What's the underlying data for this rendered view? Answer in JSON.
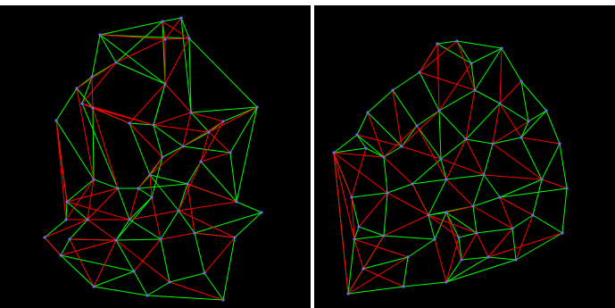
{
  "colors": {
    "background": "#000000",
    "separator": "#ffffff",
    "green_edge": "#00ff00",
    "red_edge": "#ff0000",
    "vertex": "#6a6aff"
  },
  "panels": [
    {
      "name": "left-mesh",
      "vertices": [
        [
          112,
          33
        ],
        [
          182,
          18
        ],
        [
          203,
          14
        ],
        [
          212,
          37
        ],
        [
          185,
          38
        ],
        [
          130,
          64
        ],
        [
          103,
          80
        ],
        [
          86,
          93
        ],
        [
          63,
          129
        ],
        [
          92,
          110
        ],
        [
          104,
          115
        ],
        [
          145,
          132
        ],
        [
          172,
          134
        ],
        [
          185,
          88
        ],
        [
          214,
          120
        ],
        [
          288,
          114
        ],
        [
          250,
          130
        ],
        [
          234,
          142
        ],
        [
          258,
          165
        ],
        [
          225,
          175
        ],
        [
          205,
          158
        ],
        [
          182,
          170
        ],
        [
          168,
          190
        ],
        [
          155,
          205
        ],
        [
          132,
          205
        ],
        [
          105,
          195
        ],
        [
          75,
          220
        ],
        [
          74,
          240
        ],
        [
          98,
          240
        ],
        [
          145,
          240
        ],
        [
          200,
          230
        ],
        [
          265,
          220
        ],
        [
          293,
          232
        ],
        [
          263,
          260
        ],
        [
          218,
          255
        ],
        [
          180,
          262
        ],
        [
          130,
          263
        ],
        [
          78,
          262
        ],
        [
          50,
          260
        ],
        [
          68,
          280
        ],
        [
          105,
          315
        ],
        [
          165,
          325
        ],
        [
          190,
          310
        ],
        [
          250,
          330
        ],
        [
          229,
          300
        ],
        [
          150,
          298
        ],
        [
          210,
          200
        ],
        [
          170,
          215
        ]
      ],
      "green_edges": [
        [
          0,
          1
        ],
        [
          1,
          2
        ],
        [
          2,
          3
        ],
        [
          0,
          3
        ],
        [
          0,
          5
        ],
        [
          5,
          6
        ],
        [
          6,
          7
        ],
        [
          7,
          8
        ],
        [
          2,
          14
        ],
        [
          3,
          14
        ],
        [
          14,
          15
        ],
        [
          15,
          16
        ],
        [
          15,
          18
        ],
        [
          15,
          31
        ],
        [
          31,
          32
        ],
        [
          32,
          33
        ],
        [
          33,
          43
        ],
        [
          43,
          41
        ],
        [
          41,
          40
        ],
        [
          40,
          39
        ],
        [
          39,
          38
        ],
        [
          38,
          27
        ],
        [
          27,
          26
        ],
        [
          26,
          8
        ],
        [
          0,
          6
        ],
        [
          1,
          5
        ],
        [
          3,
          15
        ],
        [
          6,
          9
        ],
        [
          9,
          10
        ],
        [
          10,
          11
        ],
        [
          11,
          12
        ],
        [
          12,
          13
        ],
        [
          13,
          4
        ],
        [
          4,
          1
        ],
        [
          5,
          13
        ],
        [
          7,
          10
        ],
        [
          12,
          21
        ],
        [
          21,
          22
        ],
        [
          22,
          23
        ],
        [
          23,
          24
        ],
        [
          24,
          25
        ],
        [
          25,
          26
        ],
        [
          22,
          46
        ],
        [
          46,
          30
        ],
        [
          30,
          34
        ],
        [
          34,
          33
        ],
        [
          21,
          47
        ],
        [
          47,
          29
        ],
        [
          29,
          36
        ],
        [
          36,
          45
        ],
        [
          45,
          40
        ],
        [
          45,
          41
        ],
        [
          42,
          44
        ],
        [
          44,
          34
        ],
        [
          42,
          35
        ],
        [
          35,
          36
        ],
        [
          35,
          30
        ],
        [
          22,
          30
        ],
        [
          23,
          47
        ],
        [
          29,
          35
        ],
        [
          20,
          21
        ],
        [
          20,
          18
        ],
        [
          19,
          46
        ],
        [
          19,
          31
        ],
        [
          18,
          31
        ],
        [
          16,
          17
        ],
        [
          17,
          20
        ],
        [
          12,
          20
        ],
        [
          11,
          22
        ],
        [
          10,
          25
        ],
        [
          24,
          29
        ],
        [
          28,
          29
        ],
        [
          27,
          28
        ],
        [
          28,
          37
        ],
        [
          37,
          39
        ],
        [
          37,
          36
        ],
        [
          39,
          45
        ],
        [
          26,
          28
        ],
        [
          8,
          25
        ],
        [
          9,
          24
        ],
        [
          13,
          12
        ],
        [
          14,
          17
        ],
        [
          0,
          13
        ],
        [
          1,
          13
        ],
        [
          23,
          46
        ],
        [
          47,
          36
        ],
        [
          42,
          41
        ],
        [
          44,
          43
        ],
        [
          32,
          34
        ],
        [
          31,
          46
        ]
      ],
      "red_edges": [
        [
          1,
          4
        ],
        [
          4,
          5
        ],
        [
          5,
          9
        ],
        [
          4,
          13
        ],
        [
          3,
          13
        ],
        [
          3,
          4
        ],
        [
          9,
          11
        ],
        [
          9,
          12
        ],
        [
          11,
          13
        ],
        [
          6,
          10
        ],
        [
          8,
          27
        ],
        [
          8,
          26
        ],
        [
          10,
          24
        ],
        [
          10,
          12
        ],
        [
          12,
          17
        ],
        [
          13,
          14
        ],
        [
          14,
          16
        ],
        [
          14,
          20
        ],
        [
          16,
          20
        ],
        [
          16,
          19
        ],
        [
          17,
          19
        ],
        [
          18,
          19
        ],
        [
          19,
          30
        ],
        [
          20,
          22
        ],
        [
          21,
          23
        ],
        [
          23,
          29
        ],
        [
          24,
          26
        ],
        [
          25,
          27
        ],
        [
          26,
          29
        ],
        [
          27,
          29
        ],
        [
          28,
          36
        ],
        [
          28,
          38
        ],
        [
          29,
          30
        ],
        [
          30,
          33
        ],
        [
          30,
          31
        ],
        [
          33,
          34
        ],
        [
          34,
          35
        ],
        [
          35,
          45
        ],
        [
          36,
          37
        ],
        [
          37,
          40
        ],
        [
          38,
          39
        ],
        [
          39,
          36
        ],
        [
          40,
          36
        ],
        [
          36,
          42
        ],
        [
          42,
          43
        ],
        [
          44,
          33
        ],
        [
          22,
          47
        ],
        [
          47,
          35
        ],
        [
          46,
          34
        ],
        [
          46,
          31
        ],
        [
          25,
          28
        ],
        [
          24,
          28
        ],
        [
          11,
          21
        ],
        [
          15,
          17
        ],
        [
          17,
          18
        ],
        [
          5,
          7
        ],
        [
          7,
          25
        ],
        [
          0,
          4
        ],
        [
          2,
          4
        ],
        [
          1,
          3
        ],
        [
          12,
          14
        ]
      ]
    },
    {
      "name": "right-mesh",
      "vertices": [
        [
          138,
          43
        ],
        [
          160,
          40
        ],
        [
          176,
          65
        ],
        [
          210,
          48
        ],
        [
          232,
          85
        ],
        [
          260,
          118
        ],
        [
          275,
          155
        ],
        [
          283,
          205
        ],
        [
          278,
          255
        ],
        [
          226,
          285
        ],
        [
          148,
          310
        ],
        [
          100,
          315
        ],
        [
          38,
          323
        ],
        [
          22,
          165
        ],
        [
          48,
          145
        ],
        [
          60,
          120
        ],
        [
          88,
          95
        ],
        [
          118,
          75
        ],
        [
          140,
          118
        ],
        [
          115,
          135
        ],
        [
          98,
          158
        ],
        [
          78,
          170
        ],
        [
          58,
          160
        ],
        [
          142,
          172
        ],
        [
          170,
          150
        ],
        [
          200,
          155
        ],
        [
          232,
          148
        ],
        [
          240,
          130
        ],
        [
          208,
          110
        ],
        [
          180,
          95
        ],
        [
          190,
          190
        ],
        [
          148,
          195
        ],
        [
          110,
          200
        ],
        [
          82,
          210
        ],
        [
          42,
          215
        ],
        [
          45,
          262
        ],
        [
          78,
          258
        ],
        [
          128,
          235
        ],
        [
          178,
          225
        ],
        [
          208,
          215
        ],
        [
          245,
          235
        ],
        [
          222,
          250
        ],
        [
          182,
          255
        ],
        [
          162,
          260
        ],
        [
          135,
          262
        ],
        [
          105,
          282
        ],
        [
          55,
          295
        ],
        [
          165,
          285
        ],
        [
          195,
          282
        ],
        [
          50,
          248
        ],
        [
          255,
          195
        ],
        [
          148,
          232
        ]
      ],
      "green_edges": [
        [
          0,
          1
        ],
        [
          1,
          3
        ],
        [
          3,
          4
        ],
        [
          4,
          5
        ],
        [
          5,
          6
        ],
        [
          6,
          7
        ],
        [
          7,
          8
        ],
        [
          8,
          9
        ],
        [
          9,
          10
        ],
        [
          10,
          11
        ],
        [
          11,
          12
        ],
        [
          12,
          13
        ],
        [
          13,
          14
        ],
        [
          14,
          15
        ],
        [
          15,
          16
        ],
        [
          16,
          17
        ],
        [
          17,
          0
        ],
        [
          0,
          2
        ],
        [
          1,
          2
        ],
        [
          2,
          3
        ],
        [
          2,
          29
        ],
        [
          3,
          29
        ],
        [
          29,
          28
        ],
        [
          28,
          27
        ],
        [
          27,
          5
        ],
        [
          4,
          27
        ],
        [
          5,
          26
        ],
        [
          26,
          25
        ],
        [
          25,
          24
        ],
        [
          24,
          23
        ],
        [
          23,
          31
        ],
        [
          31,
          30
        ],
        [
          30,
          25
        ],
        [
          30,
          38
        ],
        [
          38,
          39
        ],
        [
          39,
          7
        ],
        [
          39,
          50
        ],
        [
          50,
          6
        ],
        [
          50,
          40
        ],
        [
          40,
          8
        ],
        [
          40,
          41
        ],
        [
          41,
          9
        ],
        [
          41,
          42
        ],
        [
          42,
          43
        ],
        [
          43,
          47
        ],
        [
          47,
          10
        ],
        [
          47,
          48
        ],
        [
          48,
          9
        ],
        [
          42,
          38
        ],
        [
          37,
          38
        ],
        [
          37,
          31
        ],
        [
          37,
          32
        ],
        [
          32,
          31
        ],
        [
          32,
          33
        ],
        [
          33,
          34
        ],
        [
          34,
          13
        ],
        [
          34,
          49
        ],
        [
          49,
          35
        ],
        [
          35,
          12
        ],
        [
          35,
          36
        ],
        [
          36,
          33
        ],
        [
          36,
          46
        ],
        [
          46,
          12
        ],
        [
          45,
          46
        ],
        [
          45,
          11
        ],
        [
          44,
          45
        ],
        [
          44,
          37
        ],
        [
          44,
          51
        ],
        [
          51,
          37
        ],
        [
          51,
          43
        ],
        [
          20,
          21
        ],
        [
          21,
          22
        ],
        [
          22,
          13
        ],
        [
          22,
          14
        ],
        [
          20,
          19
        ],
        [
          19,
          18
        ],
        [
          18,
          24
        ],
        [
          18,
          23
        ],
        [
          19,
          23
        ],
        [
          15,
          20
        ],
        [
          16,
          19
        ],
        [
          17,
          18
        ],
        [
          29,
          18
        ],
        [
          23,
          32
        ],
        [
          21,
          33
        ],
        [
          30,
          39
        ],
        [
          26,
          50
        ],
        [
          28,
          24
        ],
        [
          27,
          26
        ],
        [
          14,
          21
        ],
        [
          51,
          42
        ],
        [
          10,
          48
        ],
        [
          36,
          49
        ],
        [
          44,
          36
        ]
      ],
      "red_edges": [
        [
          0,
          17
        ],
        [
          1,
          17
        ],
        [
          17,
          29
        ],
        [
          0,
          18
        ],
        [
          1,
          29
        ],
        [
          2,
          18
        ],
        [
          3,
          28
        ],
        [
          4,
          28
        ],
        [
          28,
          25
        ],
        [
          27,
          25
        ],
        [
          26,
          6
        ],
        [
          25,
          50
        ],
        [
          24,
          30
        ],
        [
          23,
          30
        ],
        [
          18,
          20
        ],
        [
          19,
          21
        ],
        [
          16,
          20
        ],
        [
          15,
          21
        ],
        [
          14,
          20
        ],
        [
          13,
          21
        ],
        [
          13,
          33
        ],
        [
          13,
          34
        ],
        [
          13,
          35
        ],
        [
          13,
          12
        ],
        [
          22,
          34
        ],
        [
          21,
          32
        ],
        [
          20,
          23
        ],
        [
          19,
          31
        ],
        [
          32,
          37
        ],
        [
          33,
          37
        ],
        [
          34,
          35
        ],
        [
          35,
          45
        ],
        [
          36,
          37
        ],
        [
          37,
          43
        ],
        [
          37,
          42
        ],
        [
          31,
          38
        ],
        [
          30,
          50
        ],
        [
          38,
          41
        ],
        [
          39,
          40
        ],
        [
          40,
          9
        ],
        [
          41,
          48
        ],
        [
          42,
          48
        ],
        [
          43,
          10
        ],
        [
          44,
          10
        ],
        [
          45,
          12
        ],
        [
          46,
          35
        ],
        [
          47,
          42
        ],
        [
          49,
          33
        ],
        [
          38,
          51
        ],
        [
          51,
          47
        ],
        [
          39,
          41
        ],
        [
          50,
          7
        ],
        [
          28,
          26
        ],
        [
          24,
          31
        ],
        [
          29,
          24
        ],
        [
          12,
          36
        ],
        [
          11,
          46
        ],
        [
          48,
          8
        ]
      ]
    }
  ]
}
